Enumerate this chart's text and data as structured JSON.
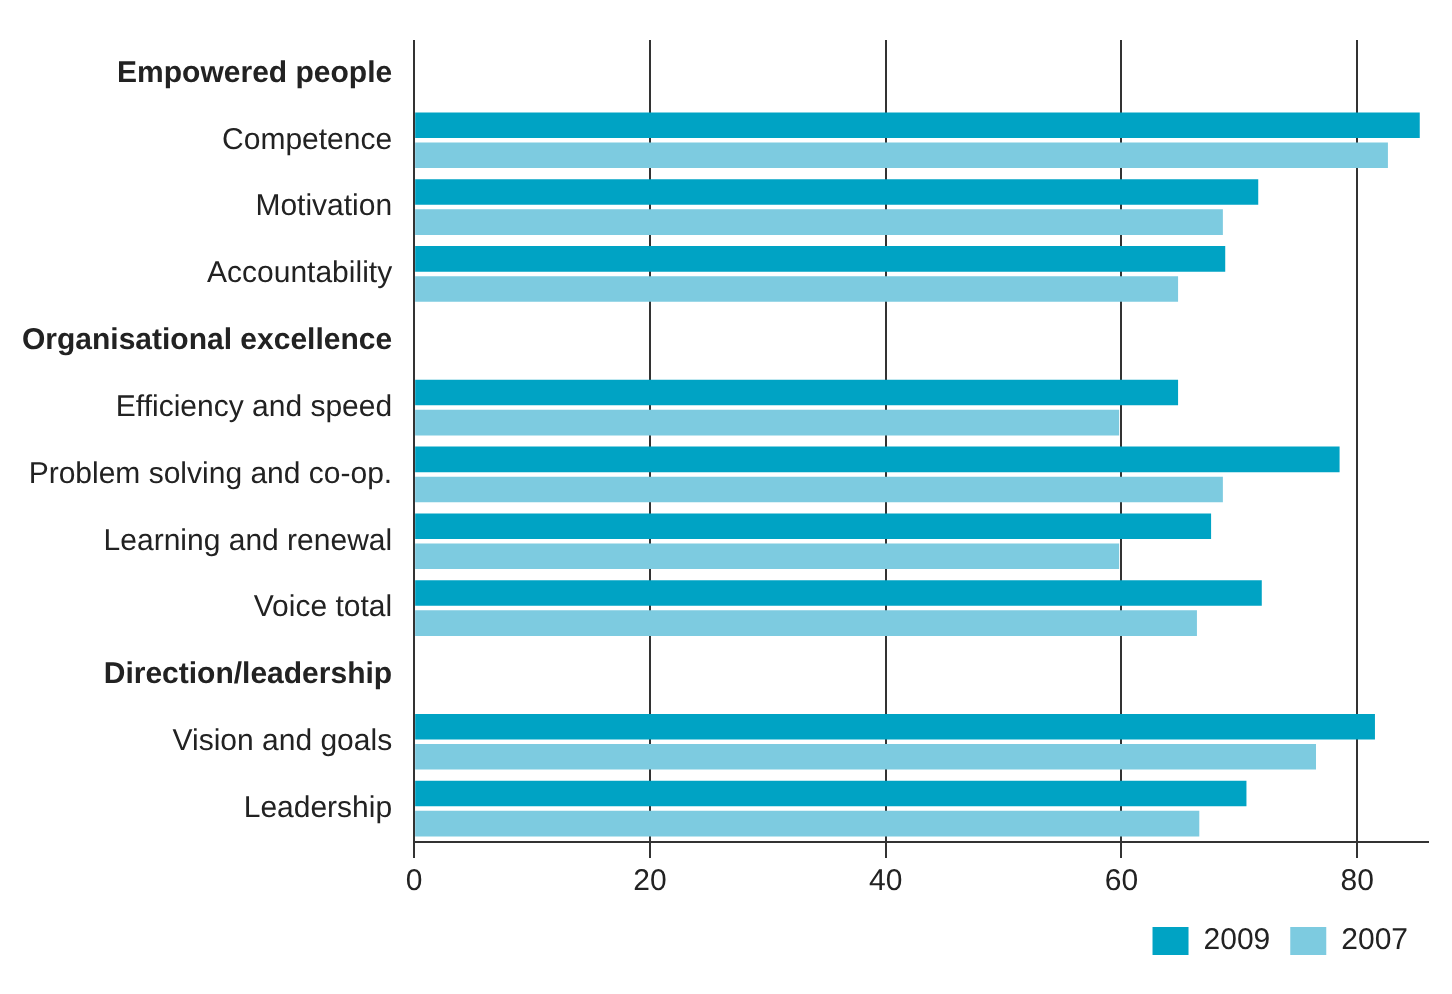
{
  "chart_data": {
    "type": "bar",
    "orientation": "horizontal",
    "categories": [
      "Empowered people",
      "Competence",
      "Motivation",
      "Accountability",
      "Organisational excellence",
      "Efficiency and speed",
      "Problem solving and co-op.",
      "Learning and renewal",
      "Voice total",
      "Direction/leadership",
      "Vision and goals",
      "Leadership"
    ],
    "series": [
      {
        "name": "2009",
        "color": "#00a3c4",
        "values": [
          null,
          85.3,
          71.6,
          68.8,
          null,
          64.8,
          78.5,
          67.6,
          71.9,
          null,
          81.5,
          70.6
        ]
      },
      {
        "name": "2007",
        "color": "#7dcbe0",
        "values": [
          null,
          82.6,
          68.6,
          64.8,
          null,
          59.8,
          68.6,
          59.8,
          66.4,
          null,
          76.5,
          66.6
        ]
      }
    ],
    "xlim": [
      0,
      86
    ],
    "xticks": [
      0,
      20,
      40,
      60,
      80
    ],
    "grid": "x",
    "legend": "bottom right"
  }
}
